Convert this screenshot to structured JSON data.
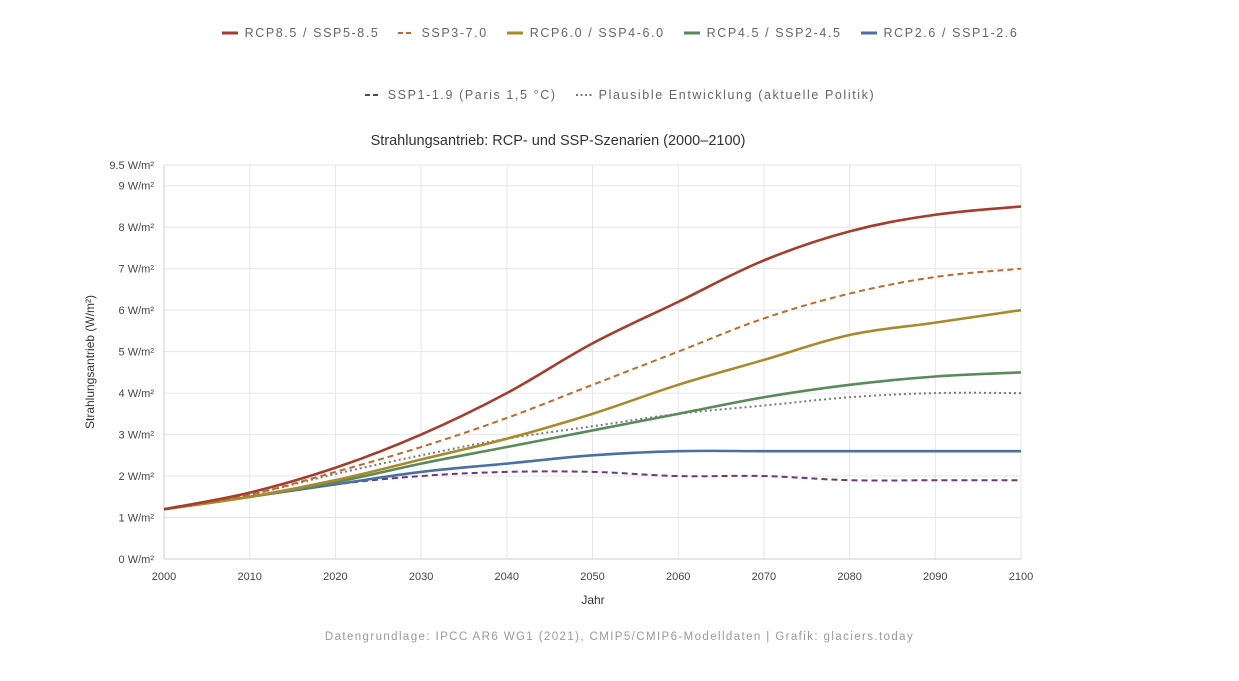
{
  "chart_data": {
    "type": "line",
    "title": "Strahlungsantrieb: RCP- und SSP-Szenarien (2000–2100)",
    "xlabel": "Jahr",
    "ylabel": "Strahlungsantrieb (W/m²)",
    "x": [
      2000,
      2010,
      2020,
      2030,
      2040,
      2050,
      2060,
      2070,
      2080,
      2090,
      2100
    ],
    "xlim": [
      2000,
      2100
    ],
    "ylim": [
      0,
      9.5
    ],
    "y_ticks": [
      {
        "value": 0,
        "label": "0 W/m²"
      },
      {
        "value": 1,
        "label": "1 W/m²"
      },
      {
        "value": 2,
        "label": "2 W/m²"
      },
      {
        "value": 3,
        "label": "3 W/m²"
      },
      {
        "value": 4,
        "label": "4 W/m²"
      },
      {
        "value": 5,
        "label": "5 W/m²"
      },
      {
        "value": 6,
        "label": "6 W/m²"
      },
      {
        "value": 7,
        "label": "7 W/m²"
      },
      {
        "value": 8,
        "label": "8 W/m²"
      },
      {
        "value": 9,
        "label": "9 W/m²"
      },
      {
        "value": 9.5,
        "label": "9.5 W/m²"
      }
    ],
    "x_tick_labels": [
      "2000",
      "2010",
      "2020",
      "2030",
      "2040",
      "2050",
      "2060",
      "2070",
      "2080",
      "2090",
      "2100"
    ],
    "grid": true,
    "series": [
      {
        "name": "RCP8.5 / SSP5-8.5",
        "color": "#a63c2b",
        "dash": "solid",
        "values": [
          1.2,
          1.6,
          2.2,
          3.0,
          4.0,
          5.2,
          6.2,
          7.2,
          7.9,
          8.3,
          8.5
        ]
      },
      {
        "name": "SSP3-7.0",
        "color": "#c0692b",
        "dash": "dashed",
        "values": [
          1.2,
          1.55,
          2.1,
          2.7,
          3.4,
          4.2,
          5.0,
          5.8,
          6.4,
          6.8,
          7.0
        ]
      },
      {
        "name": "RCP6.0 / SSP4-6.0",
        "color": "#a88a2a",
        "dash": "solid",
        "values": [
          1.2,
          1.5,
          1.9,
          2.4,
          2.9,
          3.5,
          4.2,
          4.8,
          5.4,
          5.7,
          6.0
        ]
      },
      {
        "name": "RCP4.5 / SSP2-4.5",
        "color": "#5a8a5a",
        "dash": "solid",
        "values": [
          1.2,
          1.5,
          1.85,
          2.3,
          2.7,
          3.1,
          3.5,
          3.9,
          4.2,
          4.4,
          4.5
        ]
      },
      {
        "name": "RCP2.6 / SSP1-2.6",
        "color": "#4a6fa5",
        "dash": "solid",
        "values": [
          1.2,
          1.5,
          1.8,
          2.1,
          2.3,
          2.5,
          2.6,
          2.6,
          2.6,
          2.6,
          2.6
        ]
      },
      {
        "name": "SSP1-1.9 (Paris 1,5 °C)",
        "color": "#6b3a7a",
        "dash": "dashed",
        "values": [
          1.2,
          1.5,
          1.8,
          2.0,
          2.1,
          2.1,
          2.0,
          2.0,
          1.9,
          1.9,
          1.9
        ]
      },
      {
        "name": "Plausible Entwicklung (aktuelle Politik)",
        "color": "#7a7a7a",
        "dash": "dotted",
        "values": [
          1.2,
          1.55,
          2.05,
          2.5,
          2.9,
          3.2,
          3.5,
          3.7,
          3.9,
          4.0,
          4.0
        ]
      }
    ]
  },
  "footer": "Datengrundlage: IPCC AR6 WG1 (2021), CMIP5/CMIP6-Modelldaten  |  Grafik: glaciers.today"
}
